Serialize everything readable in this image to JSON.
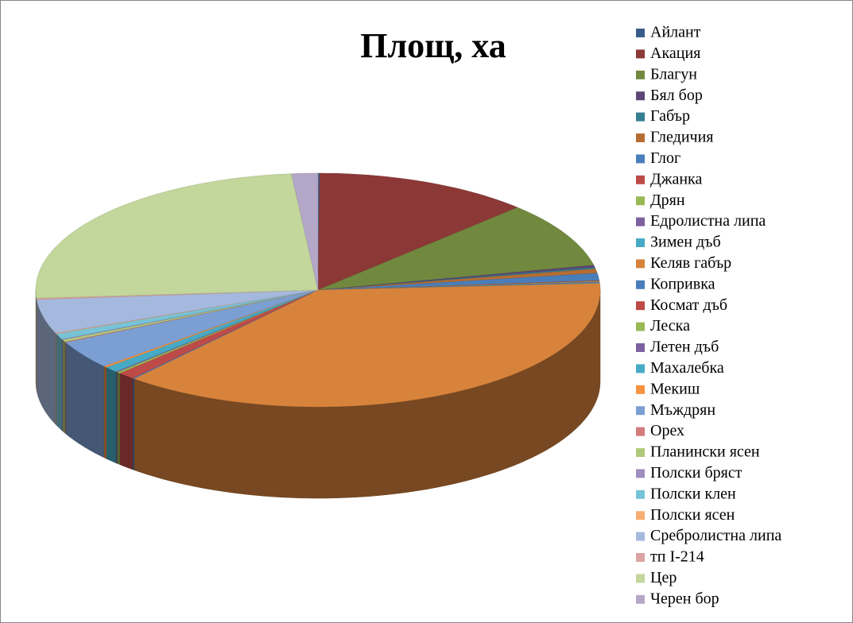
{
  "chart_data": {
    "type": "pie3d",
    "title": "Площ, ха",
    "categories": [
      "Айлант",
      "Акация",
      "Благун",
      "Бял бор",
      "Габър",
      "Гледичия",
      "Глог",
      "Джанка",
      "Дрян",
      "Едролистна липа",
      "Зимен дъб",
      "Келяв габър",
      "Копривка",
      "Космат дъб",
      "Леска",
      "Летен дъб",
      "Махалебка",
      "Мекиш",
      "Мъждрян",
      "Орех",
      "Планински ясен",
      "Полски бряст",
      "Полски клен",
      "Полски ясен",
      "Сребролистна липа",
      "тп I-214",
      "Цер",
      "Черен бор"
    ],
    "values": [
      0.1,
      12.4,
      9.1,
      0.3,
      0.2,
      0.6,
      1.0,
      0.1,
      0.1,
      0.1,
      0.1,
      37.2,
      0.1,
      1.0,
      0.2,
      0.1,
      0.8,
      0.2,
      3.9,
      0.1,
      0.3,
      0.1,
      0.8,
      0.1,
      4.7,
      0.2,
      24.6,
      1.5
    ],
    "colors": [
      "#385D8A",
      "#8C3836",
      "#71893F",
      "#5C4776",
      "#357D91",
      "#B66D31",
      "#4A7EBB",
      "#BE4B48",
      "#98B954",
      "#7D60A0",
      "#46AAC5",
      "#D8833C",
      "#4A7EBB",
      "#BE4B48",
      "#98B954",
      "#7D60A0",
      "#46AAC5",
      "#F69240",
      "#7B9FD3",
      "#D47C7A",
      "#B0CA7C",
      "#A08EBE",
      "#77C3D8",
      "#F9AE73",
      "#A5B9DE",
      "#DBA3A2",
      "#C3D69B",
      "#B4A7C8"
    ],
    "legend": "right"
  }
}
